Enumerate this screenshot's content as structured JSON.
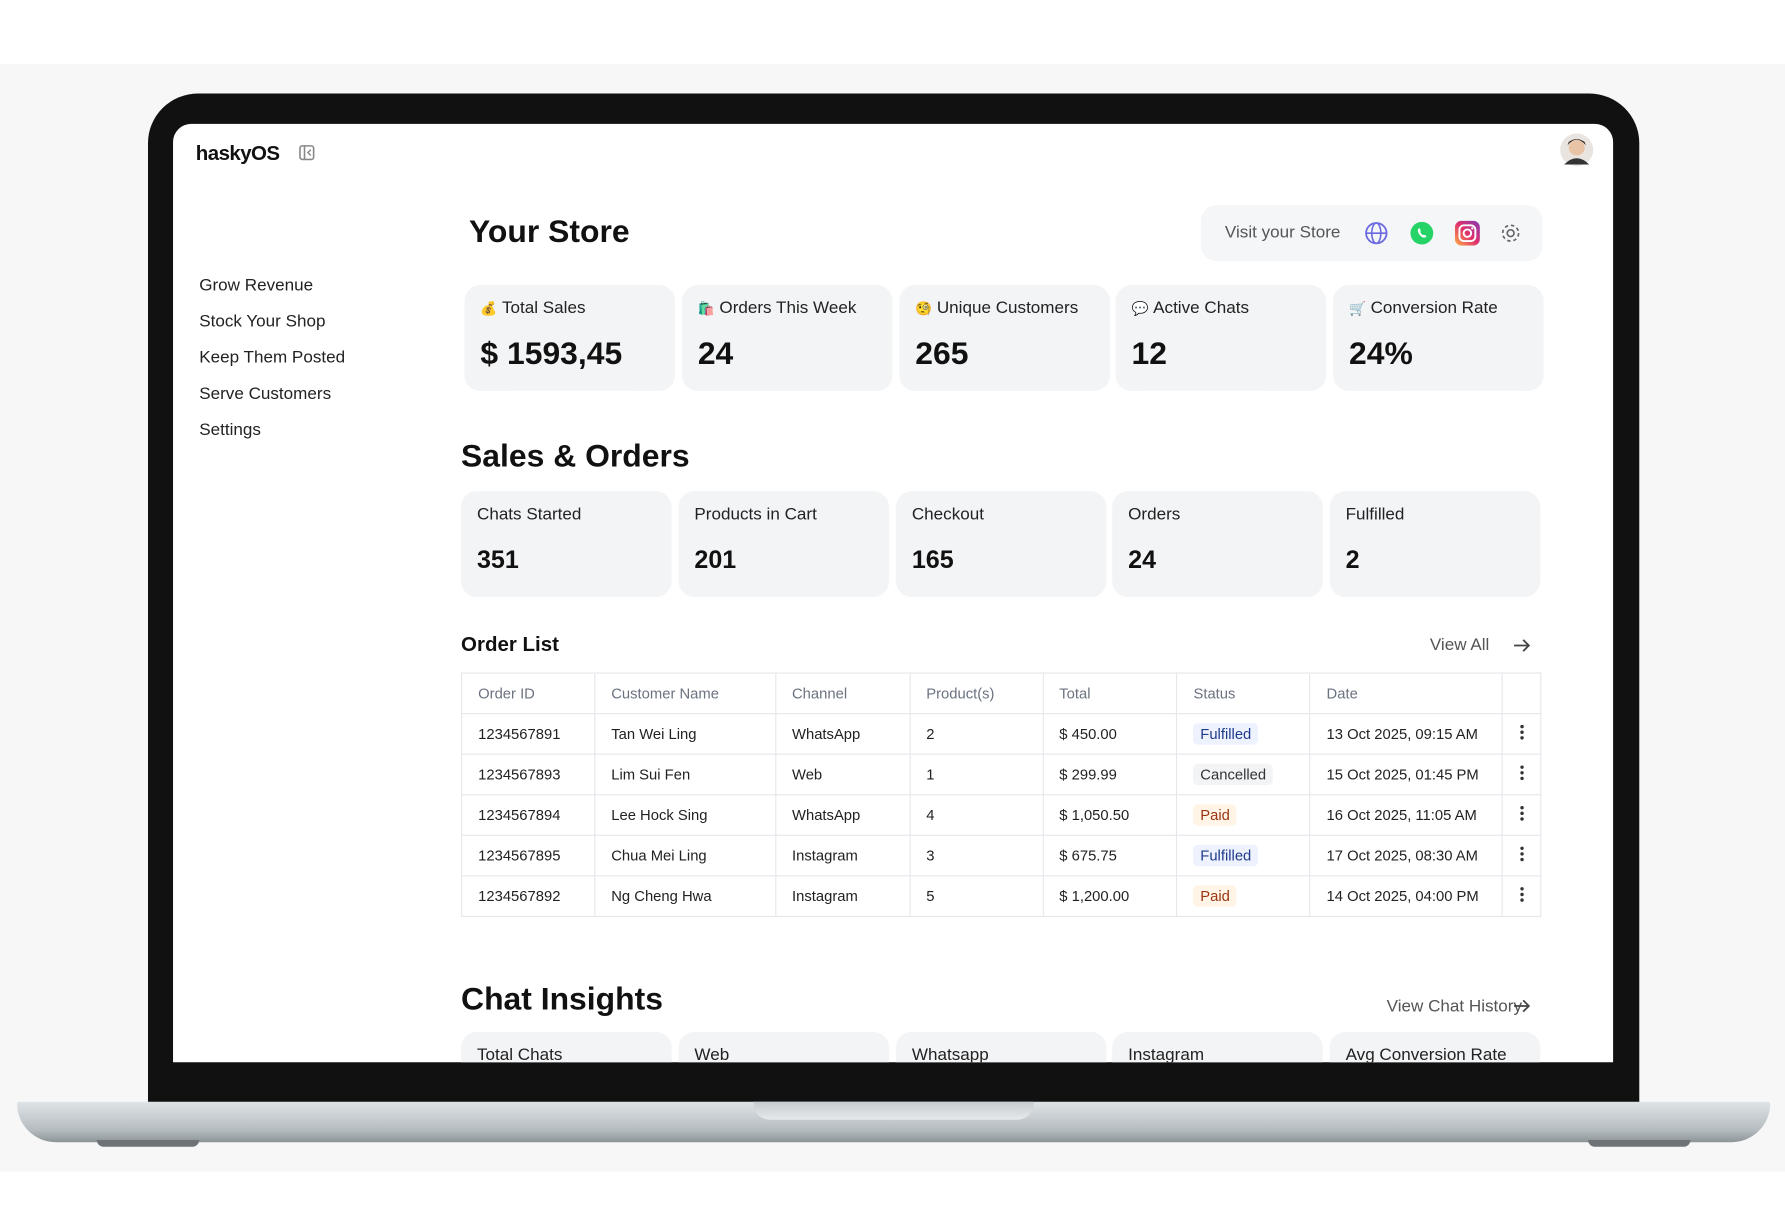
{
  "header": {
    "brand": "haskyOS"
  },
  "nav": [
    "Grow Revenue",
    "Stock Your Shop",
    "Keep Them Posted",
    "Serve Customers",
    "Settings"
  ],
  "store": {
    "title": "Your Store",
    "visit": "Visit your Store",
    "stats": [
      {
        "icon": "💰",
        "label": "Total Sales",
        "value": "$ 1593,45"
      },
      {
        "icon": "🛍️",
        "label": "Orders This Week",
        "value": "24"
      },
      {
        "icon": "🧐",
        "label": "Unique Customers",
        "value": "265"
      },
      {
        "icon": "💬",
        "label": "Active Chats",
        "value": "12"
      },
      {
        "icon": "🛒",
        "label": "Conversion Rate",
        "value": "24%"
      }
    ]
  },
  "sales": {
    "title": "Sales & Orders",
    "stats": [
      {
        "label": "Chats Started",
        "value": "351"
      },
      {
        "label": "Products in Cart",
        "value": "201"
      },
      {
        "label": "Checkout",
        "value": "165"
      },
      {
        "label": "Orders",
        "value": "24"
      },
      {
        "label": "Fulfilled",
        "value": "2"
      }
    ]
  },
  "orders": {
    "title": "Order List",
    "view_all": "View All",
    "columns": [
      "Order ID",
      "Customer Name",
      "Channel",
      "Product(s)",
      "Total",
      "Status",
      "Date"
    ],
    "rows": [
      [
        "1234567891",
        "Tan Wei Ling",
        "WhatsApp",
        "2",
        "$ 450.00",
        "Fulfilled",
        "13 Oct 2025, 09:15 AM"
      ],
      [
        "1234567893",
        "Lim Sui Fen",
        "Web",
        "1",
        "$ 299.99",
        "Cancelled",
        "15 Oct 2025, 01:45 PM"
      ],
      [
        "1234567894",
        "Lee Hock Sing",
        "WhatsApp",
        "4",
        "$ 1,050.50",
        "Paid",
        "16 Oct 2025, 11:05 AM"
      ],
      [
        "1234567895",
        "Chua Mei Ling",
        "Instagram",
        "3",
        "$ 675.75",
        "Fulfilled",
        "17 Oct 2025, 08:30 AM"
      ],
      [
        "1234567892",
        "Ng Cheng Hwa",
        "Instagram",
        "5",
        "$ 1,200.00",
        "Paid",
        "14 Oct 2025, 04:00 PM"
      ]
    ]
  },
  "chat": {
    "title": "Chat Insights",
    "view_history": "View Chat History",
    "cards": [
      "Total Chats",
      "Web",
      "Whatsapp",
      "Instagram",
      "Avg Conversion Rate"
    ]
  }
}
